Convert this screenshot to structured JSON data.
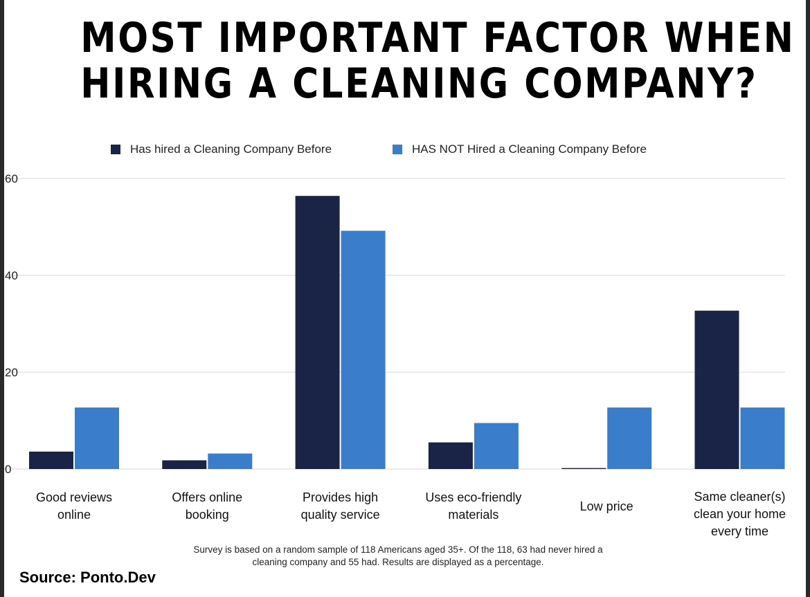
{
  "title_lines": [
    "MOST IMPORTANT FACTOR WHEN",
    "HIRING A CLEANING COMPANY?"
  ],
  "colors": {
    "hired": "#1a2446",
    "not_hired": "#3a7dcb",
    "grid": "#d8d8d8"
  },
  "footnote_lines": [
    "Survey is based on a random sample of 118 Americans aged 35+. Of the 118, 63 had never hired a",
    "cleaning company and 55 had. Results are displayed as a percentage."
  ],
  "source": "Source: Ponto.Dev",
  "chart_data": {
    "type": "bar",
    "title": "MOST IMPORTANT FACTOR WHEN HIRING A CLEANING COMPANY?",
    "categories": [
      [
        "Good reviews",
        "online"
      ],
      [
        "Offers online",
        "booking"
      ],
      [
        "Provides high",
        "quality service"
      ],
      [
        "Uses eco-friendly",
        "materials"
      ],
      [
        "Low price"
      ],
      [
        "Same cleaner(s)",
        "clean your home",
        "every time"
      ]
    ],
    "series": [
      {
        "name": "Has hired a Cleaning Company Before",
        "values": [
          3.6,
          1.8,
          56.4,
          5.5,
          0.2,
          32.7
        ]
      },
      {
        "name": "HAS NOT Hired a Cleaning Company Before",
        "values": [
          12.7,
          3.2,
          49.2,
          9.5,
          12.7,
          12.7
        ]
      }
    ],
    "yticks": [
      0,
      20,
      40,
      60
    ],
    "ylim": [
      0,
      60
    ],
    "xlabel": "",
    "ylabel": "",
    "grid": true,
    "legend": "top-center"
  }
}
